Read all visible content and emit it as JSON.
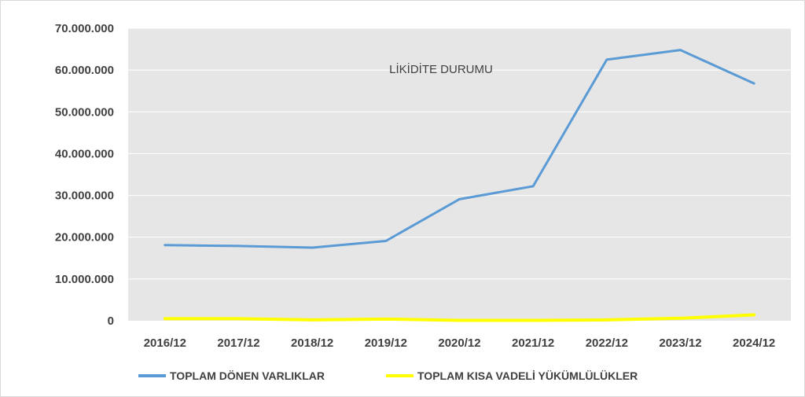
{
  "chart_data": {
    "type": "line",
    "title": "LİKİDİTE DURUMU",
    "xlabel": "",
    "ylabel": "",
    "categories": [
      "2016/12",
      "2017/12",
      "2018/12",
      "2019/12",
      "2020/12",
      "2021/12",
      "2022/12",
      "2023/12",
      "2024/12"
    ],
    "ylim": [
      0,
      70000000
    ],
    "yticks": [
      0,
      10000000,
      20000000,
      30000000,
      40000000,
      50000000,
      60000000,
      70000000
    ],
    "ytick_labels": [
      "0",
      "10.000.000",
      "20.000.000",
      "30.000.000",
      "40.000.000",
      "50.000.000",
      "60.000.000",
      "70.000.000"
    ],
    "grid": true,
    "legend_position": "bottom",
    "series": [
      {
        "name": "TOPLAM DÖNEN VARLIKLAR",
        "color": "#5b9bd5",
        "values": [
          18100000,
          17900000,
          17500000,
          19100000,
          29100000,
          32200000,
          62500000,
          64800000,
          56800000
        ]
      },
      {
        "name": "TOPLAM KISA VADELİ YÜKÜMLÜLÜKLER",
        "color": "#ffff00",
        "values": [
          500000,
          500000,
          200000,
          400000,
          100000,
          100000,
          200000,
          600000,
          1400000
        ]
      }
    ],
    "plot_background": "#e7e6e6",
    "gridline_color": "#ffffff"
  }
}
